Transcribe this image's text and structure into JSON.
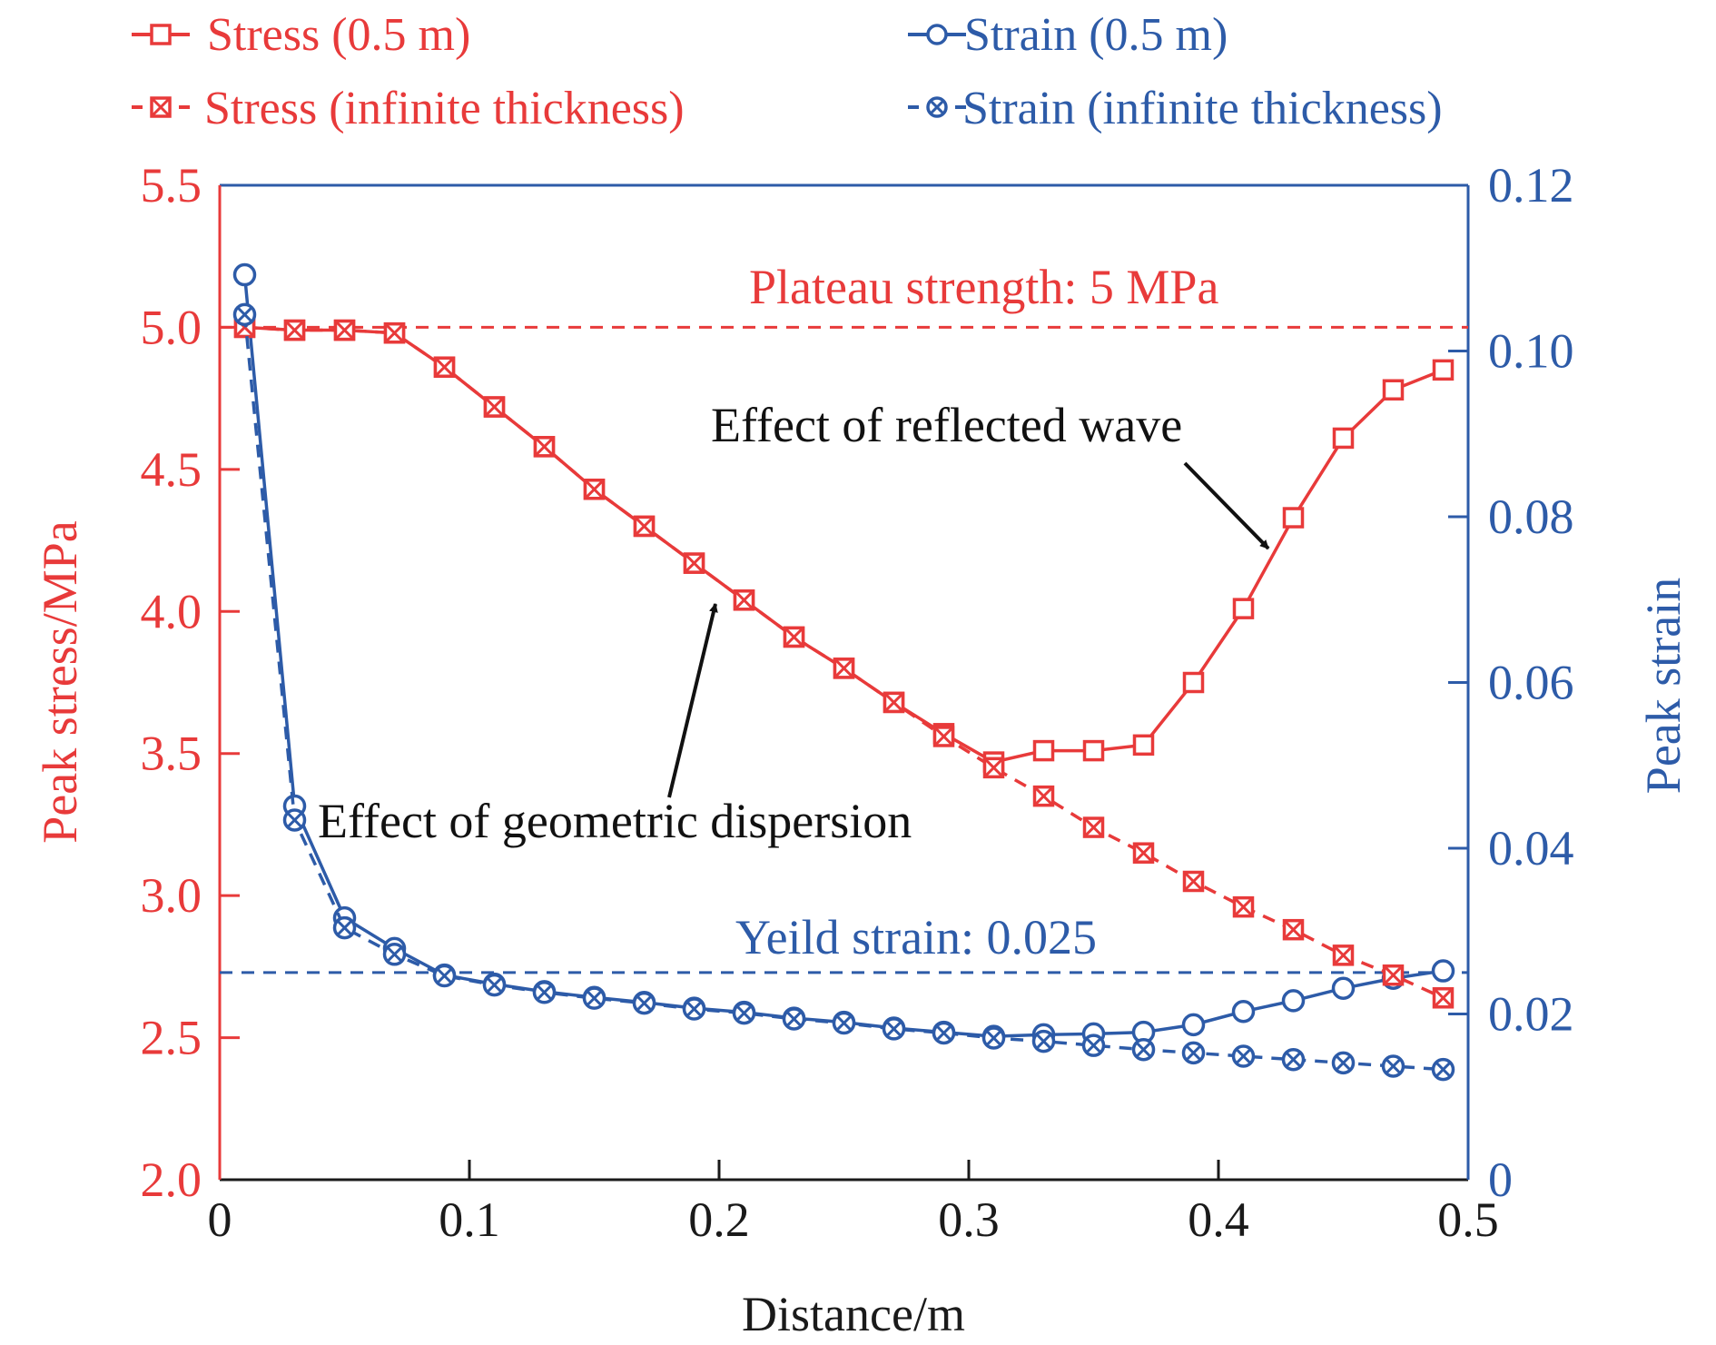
{
  "colors": {
    "stress": "#e83a3a",
    "strain": "#2d5ba8",
    "axis": "#1a1a1a",
    "annotation": "#111111"
  },
  "chart_data": {
    "type": "line",
    "title": "",
    "xlabel": "Distance/m",
    "ylabel_left": "Peak stress/MPa",
    "ylabel_right": "Peak strain",
    "xlim": [
      0,
      0.5
    ],
    "ylim_left": [
      2.0,
      5.5
    ],
    "ylim_right": [
      0,
      0.12
    ],
    "x_ticks": [
      "0",
      "0.1",
      "0.2",
      "0.3",
      "0.4",
      "0.5"
    ],
    "x_tick_values": [
      0,
      0.1,
      0.2,
      0.3,
      0.4,
      0.5
    ],
    "y_left_ticks": [
      "2.0",
      "2.5",
      "3.0",
      "3.5",
      "4.0",
      "4.5",
      "5.0",
      "5.5"
    ],
    "y_left_tick_values": [
      2.0,
      2.5,
      3.0,
      3.5,
      4.0,
      4.5,
      5.0,
      5.5
    ],
    "y_right_ticks": [
      "0",
      "0.02",
      "0.04",
      "0.06",
      "0.08",
      "0.10",
      "0.12"
    ],
    "y_right_tick_values": [
      0,
      0.02,
      0.04,
      0.06,
      0.08,
      0.1,
      0.12
    ],
    "grid": false,
    "legend_position": "top",
    "x": [
      0.01,
      0.03,
      0.05,
      0.07,
      0.09,
      0.11,
      0.13,
      0.15,
      0.17,
      0.19,
      0.21,
      0.23,
      0.25,
      0.27,
      0.29,
      0.31,
      0.33,
      0.35,
      0.37,
      0.39,
      0.41,
      0.43,
      0.45,
      0.47,
      0.49
    ],
    "series": [
      {
        "name": "Stress (0.5 m)",
        "axis": "left",
        "color_key": "stress",
        "line": "solid",
        "marker": "open-square",
        "values": [
          5.0,
          4.99,
          4.99,
          4.98,
          4.86,
          4.72,
          4.58,
          4.43,
          4.3,
          4.17,
          4.04,
          3.91,
          3.8,
          3.68,
          3.57,
          3.47,
          3.51,
          3.51,
          3.53,
          3.75,
          4.01,
          4.33,
          4.61,
          4.78,
          4.85
        ]
      },
      {
        "name": "Stress (infinite thickness)",
        "axis": "left",
        "color_key": "stress",
        "line": "dashed",
        "marker": "crossed-square",
        "values": [
          5.0,
          4.99,
          4.99,
          4.98,
          4.86,
          4.72,
          4.58,
          4.43,
          4.3,
          4.17,
          4.04,
          3.91,
          3.8,
          3.68,
          3.56,
          3.45,
          3.35,
          3.24,
          3.15,
          3.05,
          2.96,
          2.88,
          2.79,
          2.72,
          2.64
        ]
      },
      {
        "name": "Strain (0.5 m)",
        "axis": "right",
        "color_key": "strain",
        "line": "solid",
        "marker": "open-circle",
        "values": [
          0.1092,
          0.0451,
          0.0316,
          0.0279,
          0.0247,
          0.0236,
          0.0227,
          0.022,
          0.0214,
          0.0207,
          0.0202,
          0.0195,
          0.019,
          0.0183,
          0.0178,
          0.0173,
          0.0175,
          0.0176,
          0.0178,
          0.0187,
          0.0203,
          0.0216,
          0.0231,
          0.0243,
          0.0252
        ]
      },
      {
        "name": "Strain (infinite thickness)",
        "axis": "right",
        "color_key": "strain",
        "line": "dashed",
        "marker": "crossed-circle",
        "values": [
          0.1044,
          0.0434,
          0.0304,
          0.0272,
          0.0246,
          0.0235,
          0.0226,
          0.0219,
          0.0213,
          0.0206,
          0.0201,
          0.0194,
          0.0189,
          0.0182,
          0.0177,
          0.0171,
          0.0167,
          0.0162,
          0.0157,
          0.0153,
          0.0149,
          0.0145,
          0.0141,
          0.0137,
          0.0133
        ]
      }
    ],
    "reference_lines": [
      {
        "name": "plateau-strength",
        "axis": "left",
        "value": 5.0,
        "label": "Plateau strength: 5 MPa",
        "color_key": "stress"
      },
      {
        "name": "yield-strain",
        "axis": "right",
        "value": 0.025,
        "label": "Yeild strain: 0.025",
        "color_key": "strain"
      }
    ],
    "annotations": [
      {
        "name": "reflected-wave",
        "text": "Effect of reflected wave",
        "arrow_to": {
          "x": 0.421,
          "y_left": 4.2
        }
      },
      {
        "name": "geometric-dispersion",
        "text": "Effect of geometric dispersion",
        "arrow_to": {
          "x": 0.2,
          "y_left": 4.1
        }
      }
    ]
  }
}
